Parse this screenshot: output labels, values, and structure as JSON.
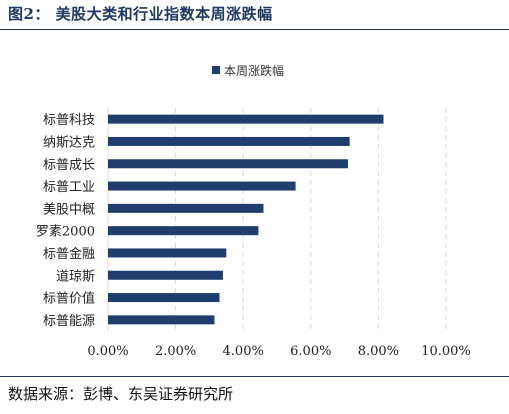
{
  "figure": {
    "title": "图2：  美股大类和行业指数本周涨跌幅",
    "source": "数据来源：彭博、东吴证券研究所"
  },
  "chart_data": {
    "type": "bar",
    "orientation": "horizontal",
    "categories": [
      "标普科技",
      "纳斯达克",
      "标普成长",
      "标普工业",
      "美股中概",
      "罗素2000",
      "标普金融",
      "道琼斯",
      "标普价值",
      "标普能源"
    ],
    "series": [
      {
        "name": "本周涨跌幅",
        "values": [
          8.15,
          7.15,
          7.1,
          5.55,
          4.6,
          4.45,
          3.5,
          3.4,
          3.3,
          3.15
        ],
        "color": "#1f3e6e"
      }
    ],
    "xlim": [
      0,
      10
    ],
    "xticks": [
      0,
      2,
      4,
      6,
      8,
      10
    ],
    "xtick_labels": [
      "0.00%",
      "2.00%",
      "4.00%",
      "6.00%",
      "8.00%",
      "10.00%"
    ],
    "grid": "vertical-dashed",
    "legend_position": "top-center"
  }
}
